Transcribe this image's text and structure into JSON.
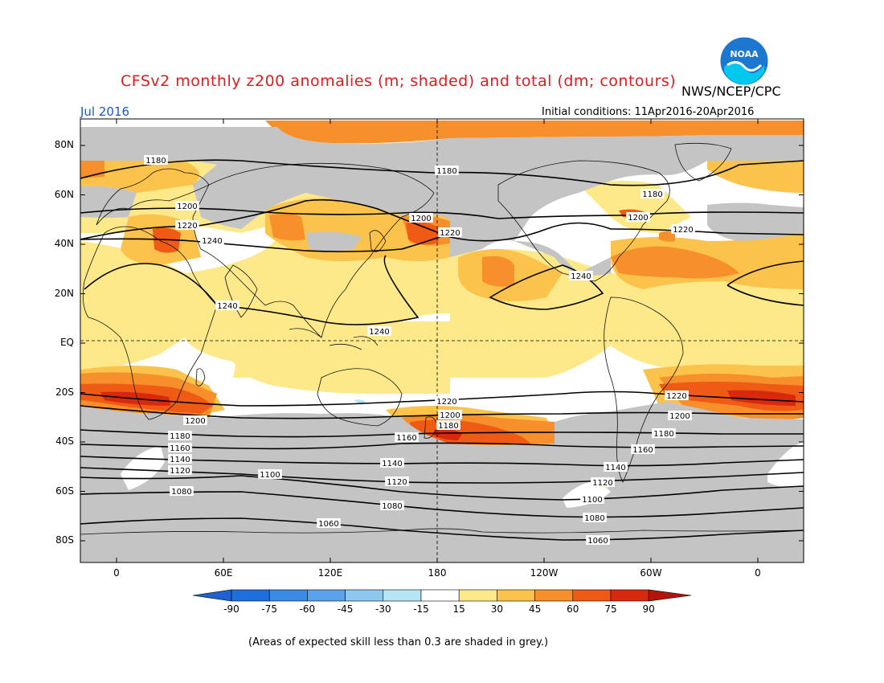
{
  "header": {
    "title": "CFSv2 monthly z200 anomalies (m; shaded) and total (dm; contours)",
    "agency": "NWS/NCEP/CPC",
    "month": "Jul 2016",
    "initial_conditions": "Initial conditions: 11Apr2016-20Apr2016",
    "logo_text": "NOAA"
  },
  "map": {
    "lat_labels": [
      "80N",
      "60N",
      "40N",
      "20N",
      "EQ",
      "20S",
      "40S",
      "60S",
      "80S"
    ],
    "lon_labels": [
      "0",
      "60E",
      "120E",
      "180",
      "120W",
      "60W",
      "0"
    ],
    "contour_labels": [
      "1180",
      "1180",
      "1180",
      "1200",
      "1200",
      "1200",
      "1220",
      "1220",
      "1220",
      "1240",
      "1240",
      "1240",
      "1240",
      "1220",
      "1220",
      "1200",
      "1200",
      "1200",
      "1180",
      "1180",
      "1180",
      "1160",
      "1160",
      "1160",
      "1140",
      "1140",
      "1140",
      "1120",
      "1120",
      "1120",
      "1100",
      "1100",
      "1080",
      "1080",
      "1080",
      "1060",
      "1060"
    ]
  },
  "colorbar": {
    "ticks": [
      "-90",
      "-75",
      "-60",
      "-45",
      "-30",
      "-15",
      "15",
      "30",
      "45",
      "60",
      "75",
      "90"
    ],
    "colors": [
      "#1e6fdc",
      "#3a8be6",
      "#5aa3ec",
      "#8cc8f0",
      "#b4e6f6",
      "#ffffff",
      "#fde98a",
      "#fbc24c",
      "#f7902a",
      "#ef5a14",
      "#d8280e"
    ],
    "left_arrow_color": "#1f62d2",
    "right_arrow_color": "#b0140c"
  },
  "footnote": "(Areas of expected skill less than 0.3 are shaded in grey.)",
  "colors": {
    "title": "#e01c1c",
    "month": "#1a55d6",
    "skill_mask": "#c4c4c4",
    "land_outline": "#111111",
    "contour": "#000000"
  }
}
